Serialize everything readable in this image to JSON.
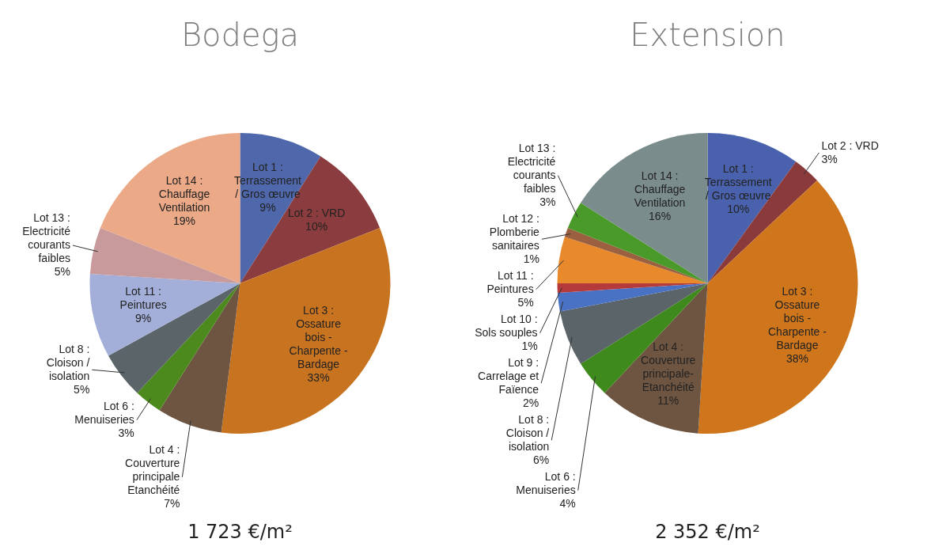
{
  "chart_data": [
    {
      "type": "pie",
      "title": "Bodega",
      "categories": [
        "Lot 1 : Terrassement / Gros œuvre",
        "Lot 2 : VRD",
        "Lot 3 : Ossature bois - Charpente - Bardage",
        "Lot 4 : Couverture principale Etanchéité",
        "Lot 6 : Menuiseries",
        "Lot 8 : Cloison / isolation",
        "Lot 11 : Peintures",
        "Lot 13 : Electricité courants faibles",
        "Lot 14 : Chauffage Ventilation"
      ],
      "values": [
        9,
        10,
        33,
        7,
        3,
        5,
        9,
        5,
        19
      ],
      "value_labels": [
        "9%",
        "10%",
        "33%",
        "7%",
        "3%",
        "5%",
        "9%",
        "5%",
        "19%"
      ],
      "colors": [
        "#4f68ab",
        "#8b3c3e",
        "#c8731f",
        "#6e5541",
        "#4c8a1e",
        "#5a6469",
        "#a3afd8",
        "#c89a9b",
        "#eba987"
      ],
      "annotations": [
        "1 723 €/m²"
      ]
    },
    {
      "type": "pie",
      "title": "Extension",
      "categories": [
        "Lot 1 : Terrassement / Gros œuvre",
        "Lot 2 : VRD",
        "Lot 3 : Ossature bois - Charpente - Bardage",
        "Lot 4 : Couverture principale- Etanchéité",
        "Lot 6 : Menuiseries",
        "Lot 8 : Cloison / isolation",
        "Lot 9 : Carrelage et Faïence",
        "Lot 10 : Sols souples",
        "Lot 11 : Peintures",
        "Lot 12 : Plomberie sanitaires",
        "Lot 13 : Electricité courants faibles",
        "Lot 14 : Chauffage Ventilation"
      ],
      "values": [
        10,
        3,
        38,
        11,
        4,
        6,
        2,
        1,
        5,
        1,
        3,
        16
      ],
      "value_labels": [
        "10%",
        "3%",
        "38%",
        "11%",
        "4%",
        "6%",
        "2%",
        "1%",
        "5%",
        "1%",
        "3%",
        "16%"
      ],
      "colors": [
        "#4a62ad",
        "#8b3a3c",
        "#cf761c",
        "#6e5541",
        "#3f8a1c",
        "#5a6469",
        "#4a72c4",
        "#b43a3c",
        "#e8892c",
        "#9a6040",
        "#4a9a2a",
        "#7b8c8c"
      ],
      "annotations": [
        "2 352 €/m²"
      ]
    }
  ]
}
